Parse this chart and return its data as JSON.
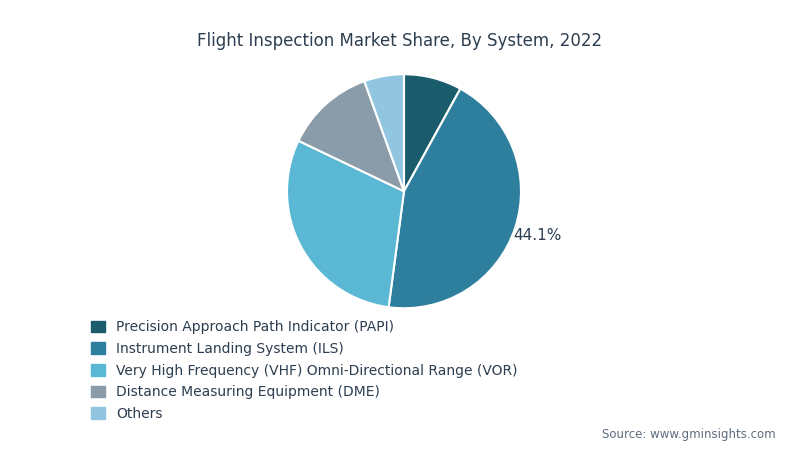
{
  "title": "Flight Inspection Market Share, By System, 2022",
  "labels": [
    "Precision Approach Path Indicator (PAPI)",
    "Instrument Landing System (ILS)",
    "Very High Frequency (VHF) Omni-Directional Range (VOR)",
    "Distance Measuring Equipment (DME)",
    "Others"
  ],
  "values": [
    8.0,
    44.1,
    30.0,
    12.4,
    5.5
  ],
  "colors": [
    "#1a5c6b",
    "#2e7f9e",
    "#5ab8d5",
    "#8a9baa",
    "#92c5e0"
  ],
  "autopct_label": "44.1%",
  "autopct_index": 1,
  "source_text": "Source: www.gminsights.com",
  "title_color": "#2c3e50",
  "title_fontsize": 12,
  "legend_fontsize": 10,
  "source_fontsize": 8.5,
  "background_color": "#ffffff",
  "startangle": 90,
  "pct_distance": 1.2
}
